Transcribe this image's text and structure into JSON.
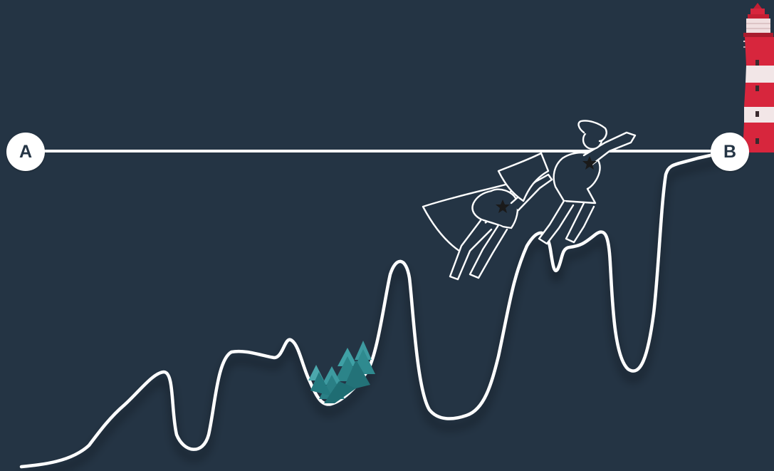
{
  "markers": {
    "start_label": "A",
    "end_label": "B"
  },
  "colors": {
    "background": "#243444",
    "line": "#ffffff",
    "trees": "#2a8a8c",
    "lighthouse": "#d7263d",
    "marker_text": "#243444"
  },
  "icons": {
    "trees": "pine-trees-illustration",
    "heroes": "flying-superheroes-illustration",
    "lighthouse": "lighthouse-illustration"
  }
}
